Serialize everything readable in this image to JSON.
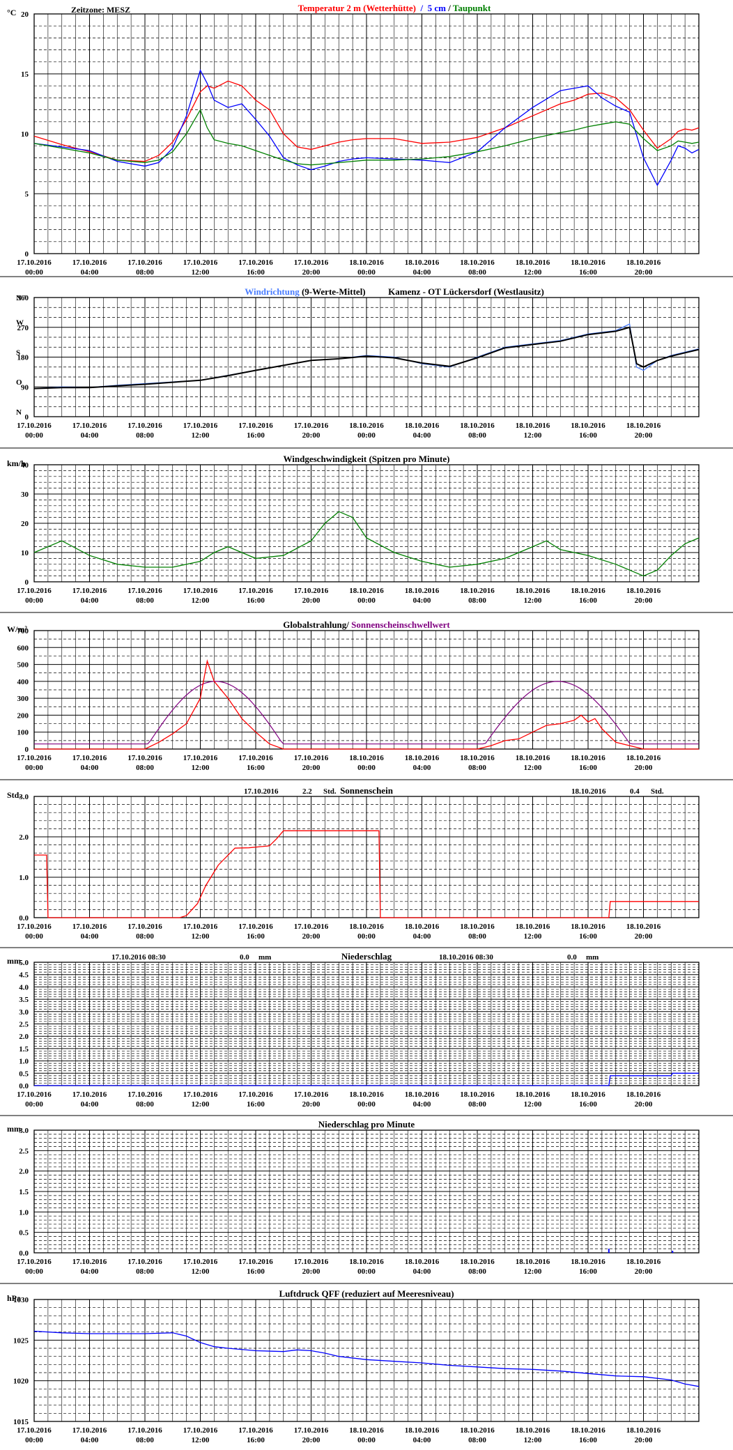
{
  "x_tick_labels": [
    {
      "date": "17.10.2016",
      "time": "00:00"
    },
    {
      "date": "17.10.2016",
      "time": "04:00"
    },
    {
      "date": "17.10.2016",
      "time": "08:00"
    },
    {
      "date": "17.10.2016",
      "time": "12:00"
    },
    {
      "date": "17.10.2016",
      "time": "16:00"
    },
    {
      "date": "17.10.2016",
      "time": "20:00"
    },
    {
      "date": "18.10.2016",
      "time": "00:00"
    },
    {
      "date": "18.10.2016",
      "time": "04:00"
    },
    {
      "date": "18.10.2016",
      "time": "08:00"
    },
    {
      "date": "18.10.2016",
      "time": "12:00"
    },
    {
      "date": "18.10.2016",
      "time": "16:00"
    },
    {
      "date": "18.10.2016",
      "time": "20:00"
    }
  ],
  "colors": {
    "red": "#ff0000",
    "blue": "#0000ff",
    "green": "#008000",
    "purple": "#800080",
    "lightblue": "#4a7dff",
    "black": "#000000"
  },
  "chart_data": [
    {
      "id": "temp",
      "type": "line",
      "unit": "°C",
      "zone": "Zeitzone: MESZ",
      "title_parts": [
        {
          "text": "Temperatur 2 m (Wetterhütte)",
          "color": "#ff0000"
        },
        {
          "text": "  /  ",
          "color": "#0000ff"
        },
        {
          "text": "5 cm",
          "color": "#0000ff"
        },
        {
          "text": " / ",
          "color": "#000000"
        },
        {
          "text": "Taupunkt",
          "color": "#008000"
        }
      ],
      "ylim": [
        0,
        20
      ],
      "yticks": [
        "0",
        "5",
        "10",
        "15",
        "20"
      ],
      "ymajor": 5,
      "yminor": 1,
      "x_hours": [
        0,
        2,
        4,
        6,
        8,
        9,
        10,
        11,
        12,
        12.5,
        13,
        14,
        15,
        16,
        17,
        18,
        19,
        20,
        21,
        22,
        23,
        24,
        26,
        28,
        30,
        32,
        34,
        36,
        38,
        39,
        40,
        41,
        42,
        43,
        44,
        45,
        46,
        46.5,
        47,
        47.5,
        48
      ],
      "series": [
        {
          "name": "Temperatur 2 m (Wetterhütte)",
          "color": "#ff0000",
          "y": [
            9.8,
            9.1,
            8.5,
            7.8,
            7.7,
            8.2,
            9.3,
            11.2,
            13.5,
            14.0,
            13.8,
            14.4,
            14.0,
            12.8,
            12.0,
            10.0,
            8.9,
            8.7,
            9.0,
            9.3,
            9.5,
            9.6,
            9.6,
            9.2,
            9.3,
            9.7,
            10.5,
            11.5,
            12.5,
            12.8,
            13.3,
            13.4,
            13.0,
            12.0,
            10.3,
            8.8,
            9.6,
            10.2,
            10.4,
            10.3,
            10.5
          ]
        },
        {
          "name": "5 cm",
          "color": "#0000ff",
          "y": [
            9.2,
            8.9,
            8.6,
            7.7,
            7.3,
            7.6,
            8.8,
            11.5,
            15.3,
            14.2,
            12.8,
            12.2,
            12.5,
            11.2,
            9.8,
            8.0,
            7.4,
            7.0,
            7.3,
            7.7,
            7.9,
            8.0,
            7.9,
            7.8,
            7.6,
            8.5,
            10.5,
            12.2,
            13.6,
            13.8,
            14.0,
            13.0,
            12.3,
            11.8,
            8.0,
            5.7,
            7.8,
            9.0,
            8.8,
            8.4,
            8.7
          ]
        },
        {
          "name": "Taupunkt",
          "color": "#008000",
          "y": [
            9.2,
            8.8,
            8.4,
            7.8,
            7.6,
            7.8,
            8.5,
            10.0,
            12.0,
            10.5,
            9.5,
            9.2,
            9.0,
            8.6,
            8.2,
            7.8,
            7.5,
            7.4,
            7.5,
            7.6,
            7.7,
            7.8,
            7.8,
            7.9,
            8.1,
            8.5,
            9.0,
            9.6,
            10.1,
            10.3,
            10.6,
            10.8,
            11.0,
            10.8,
            9.6,
            8.6,
            9.0,
            9.4,
            9.3,
            9.2,
            9.3
          ]
        }
      ]
    },
    {
      "id": "winddir",
      "type": "line",
      "title_parts": [
        {
          "text": "Windrichtung",
          "color": "#4a7dff"
        },
        {
          "text": " (9-Werte-Mittel)",
          "color": "#000000"
        },
        {
          "text": "          Kamenz - OT Lückersdorf (Westlausitz)",
          "color": "#000000"
        }
      ],
      "ylim": [
        0,
        360
      ],
      "ymajor": 90,
      "yminor": 30,
      "ylabels": [
        {
          "v": 360,
          "t": "360"
        },
        {
          "v": 270,
          "t": "270"
        },
        {
          "v": 180,
          "t": "180"
        },
        {
          "v": 90,
          "t": "90"
        },
        {
          "v": 0,
          "t": "0"
        }
      ],
      "compass": [
        {
          "v": 360,
          "t": "N °"
        },
        {
          "v": 285,
          "t": "W"
        },
        {
          "v": 195,
          "t": "S"
        },
        {
          "v": 105,
          "t": "O"
        },
        {
          "v": 15,
          "t": "N"
        }
      ],
      "x_hours": [
        0,
        2,
        4,
        6,
        8,
        10,
        12,
        14,
        16,
        18,
        20,
        22,
        24,
        26,
        28,
        30,
        32,
        34,
        36,
        38,
        40,
        42,
        43,
        43.5,
        44,
        45,
        46,
        47,
        48
      ],
      "series": [
        {
          "name": "Windrichtung",
          "color": "#4a7dff",
          "y": [
            85,
            90,
            88,
            95,
            100,
            105,
            110,
            125,
            140,
            155,
            170,
            175,
            185,
            180,
            160,
            150,
            180,
            210,
            220,
            230,
            250,
            260,
            280,
            150,
            140,
            170,
            185,
            195,
            205
          ]
        },
        {
          "name": "9-Werte-Mittel",
          "color": "#000000",
          "y": [
            85,
            88,
            88,
            93,
            98,
            104,
            110,
            124,
            140,
            155,
            170,
            175,
            183,
            178,
            162,
            152,
            178,
            208,
            218,
            228,
            248,
            258,
            270,
            160,
            150,
            170,
            183,
            193,
            203
          ]
        }
      ]
    },
    {
      "id": "windspeed",
      "type": "line",
      "unit": "km/h",
      "title_parts": [
        {
          "text": "Windgeschwindigkeit (Spitzen pro Minute)",
          "color": "#000000"
        }
      ],
      "ylim": [
        0,
        40
      ],
      "yticks": [
        "0",
        "10",
        "20",
        "30",
        "40"
      ],
      "ymajor": 10,
      "yminor": 2,
      "x_hours": [
        0,
        2,
        4,
        6,
        8,
        10,
        12,
        13,
        14,
        15,
        16,
        18,
        20,
        21,
        22,
        23,
        24,
        26,
        28,
        30,
        32,
        34,
        36,
        37,
        38,
        40,
        42,
        43,
        44,
        45,
        46,
        47,
        48
      ],
      "series": [
        {
          "name": "Windgeschwindigkeit",
          "color": "#008000",
          "y": [
            10,
            14,
            9,
            6,
            5,
            5,
            7,
            10,
            12,
            10,
            8,
            9,
            14,
            20,
            24,
            22,
            15,
            10,
            7,
            5,
            6,
            8,
            12,
            14,
            11,
            9,
            6,
            4,
            2,
            4,
            9,
            13,
            15
          ]
        }
      ]
    },
    {
      "id": "radiation",
      "type": "line",
      "unit": "W/m²",
      "title_parts": [
        {
          "text": "Globalstrahlung/ ",
          "color": "#000000"
        },
        {
          "text": "Sonnenscheinschwellwert",
          "color": "#800080"
        }
      ],
      "ylim": [
        0,
        700
      ],
      "yticks": [
        "0",
        "100",
        "200",
        "300",
        "400",
        "500",
        "600",
        "700"
      ],
      "ymajor": 100,
      "yminor": 50,
      "x_hours": [
        0,
        8,
        9,
        10,
        11,
        12,
        12.5,
        13,
        14,
        15,
        16,
        17,
        18,
        19,
        32,
        33,
        34,
        35,
        36,
        37,
        38,
        39,
        39.5,
        40,
        40.5,
        41,
        42,
        43,
        44,
        48
      ],
      "series": [
        {
          "name": "Globalstrahlung",
          "color": "#ff0000",
          "y": [
            0,
            0,
            40,
            90,
            150,
            300,
            520,
            400,
            300,
            180,
            100,
            30,
            0,
            0,
            0,
            20,
            50,
            60,
            100,
            140,
            150,
            170,
            200,
            160,
            180,
            120,
            40,
            20,
            0,
            0
          ]
        }
      ],
      "threshold": {
        "name": "Sonnenscheinschwellwert",
        "color": "#800080",
        "baseline": 30,
        "peak": 400,
        "day1": [
          8,
          18.2
        ],
        "day2": [
          32.3,
          43.3
        ]
      }
    },
    {
      "id": "sunshine",
      "type": "line",
      "unit": "Std.",
      "title_parts": [
        {
          "text": "Sonnenschein",
          "color": "#000000"
        }
      ],
      "annotations": [
        {
          "date": "17.10.2016",
          "value": "2.2",
          "unit": "Std."
        },
        {
          "date": "18.10.2016",
          "value": "0.4",
          "unit": "Std."
        }
      ],
      "ylim": [
        0,
        3
      ],
      "yticks": [
        "0.0",
        "1.0",
        "2.0",
        "3.0"
      ],
      "ymajor": 1,
      "yminor": 0.2,
      "x_hours": [
        0,
        0.9,
        1.0,
        10.5,
        11,
        11.8,
        12.4,
        13.3,
        14.5,
        15.5,
        16.8,
        17.0,
        17.5,
        18,
        19,
        20,
        22,
        24,
        24.9,
        25.0,
        26,
        30,
        34,
        36,
        40,
        41.5,
        41.6,
        42,
        44,
        46,
        48
      ],
      "series": [
        {
          "name": "Sonnenschein",
          "color": "#ff0000",
          "y": [
            1.55,
            1.55,
            0.0,
            0.0,
            0.05,
            0.35,
            0.8,
            1.3,
            1.72,
            1.73,
            1.77,
            1.78,
            1.95,
            2.15,
            2.15,
            2.15,
            2.15,
            2.15,
            2.15,
            0.0,
            0.0,
            0.0,
            0.0,
            0.0,
            0.0,
            0.0,
            0.4,
            0.4,
            0.4,
            0.4,
            0.4
          ]
        }
      ]
    },
    {
      "id": "precip",
      "type": "line",
      "unit": "mm",
      "title_parts": [
        {
          "text": "Niederschlag",
          "color": "#000000"
        }
      ],
      "annotations": [
        {
          "date": "17.10.2016 08:30",
          "value": "0.0",
          "unit": "mm"
        },
        {
          "date": "18.10.2016 08:30",
          "value": "0.0",
          "unit": "mm"
        }
      ],
      "ylim": [
        0,
        5
      ],
      "yticks": [
        "0.0",
        "0.5",
        "1.0",
        "1.5",
        "2.0",
        "2.5",
        "3.0",
        "3.5",
        "4.0",
        "4.5",
        "5.0"
      ],
      "ymajor": 0.5,
      "yminor": 0.1,
      "x_hours": [
        0,
        10,
        20,
        30,
        40,
        41.5,
        41.6,
        46,
        46.1,
        48
      ],
      "series": [
        {
          "name": "Niederschlag",
          "color": "#0000ff",
          "y": [
            0,
            0,
            0,
            0,
            0,
            0,
            0.4,
            0.4,
            0.5,
            0.5
          ]
        }
      ]
    },
    {
      "id": "precipmin",
      "type": "bar",
      "unit": "mm",
      "title_parts": [
        {
          "text": "Niederschlag pro Minute",
          "color": "#000000"
        }
      ],
      "ylim": [
        0,
        3
      ],
      "yticks": [
        "0.0",
        "0.5",
        "1.0",
        "1.5",
        "2.0",
        "2.5",
        "3.0"
      ],
      "ymajor": 0.5,
      "yminor": 0.1,
      "x_hours": [
        41.5,
        46.1
      ],
      "series": [
        {
          "name": "Niederschlag pro Minute",
          "color": "#0000ff",
          "y": [
            0.1,
            0.05
          ]
        }
      ]
    },
    {
      "id": "pressure",
      "type": "line",
      "unit": "hPa",
      "title_parts": [
        {
          "text": "Luftdruck QFF (reduziert auf Meeresniveau)",
          "color": "#000000"
        }
      ],
      "ylim": [
        1015,
        1030
      ],
      "yticks": [
        "1015",
        "1020",
        "1025",
        "1030"
      ],
      "ymajor": 5,
      "yminor": 1,
      "x_hours": [
        0,
        2,
        4,
        6,
        8,
        10,
        11,
        12,
        13,
        14,
        16,
        18,
        19,
        20,
        21,
        22,
        24,
        26,
        28,
        30,
        32,
        34,
        36,
        38,
        40,
        42,
        44,
        46,
        47,
        48
      ],
      "series": [
        {
          "name": "Luftdruck QFF",
          "color": "#0000ff",
          "y": [
            1026.1,
            1025.9,
            1025.8,
            1025.8,
            1025.8,
            1025.9,
            1025.5,
            1024.7,
            1024.2,
            1024.0,
            1023.7,
            1023.6,
            1023.8,
            1023.7,
            1023.4,
            1023.0,
            1022.6,
            1022.4,
            1022.2,
            1021.9,
            1021.7,
            1021.5,
            1021.4,
            1021.2,
            1020.9,
            1020.6,
            1020.5,
            1020.1,
            1019.6,
            1019.3
          ]
        }
      ]
    }
  ]
}
